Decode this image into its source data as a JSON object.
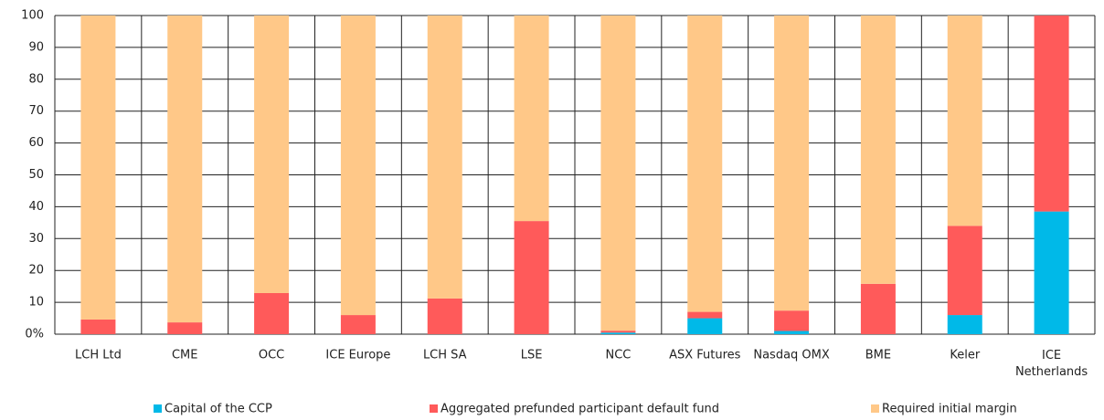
{
  "chart_data": {
    "type": "stacked_bar",
    "categories": [
      "LCH Ltd",
      "CME",
      "OCC",
      "ICE Europe",
      "LCH SA",
      "LSE",
      "NCC",
      "ASX Futures",
      "Nasdaq OMX",
      "BME",
      "Keler",
      "ICE Netherlands"
    ],
    "series": [
      {
        "name": "Capital of the CCP",
        "color": "#00b9e8",
        "values": [
          0,
          0,
          0,
          0,
          0,
          0,
          0.5,
          5,
          1,
          0,
          6,
          38.5
        ]
      },
      {
        "name": "Aggregated prefunded participant default fund",
        "color": "#ff5a5a",
        "values": [
          4.6,
          3.7,
          12.9,
          6,
          11.2,
          35.5,
          0.6,
          2,
          6.4,
          15.8,
          28,
          61.5
        ]
      },
      {
        "name": "Required initial margin",
        "color": "#ffc888",
        "values": [
          95.4,
          96.3,
          87.1,
          94,
          88.8,
          64.5,
          98.9,
          93,
          92.6,
          84.2,
          66,
          0
        ]
      }
    ],
    "ylim": [
      0,
      100
    ],
    "yticks": [
      {
        "value": 0,
        "label": "0%"
      },
      10,
      20,
      30,
      40,
      50,
      60,
      70,
      80,
      90,
      100
    ],
    "grid": true,
    "legend": "bottom"
  }
}
